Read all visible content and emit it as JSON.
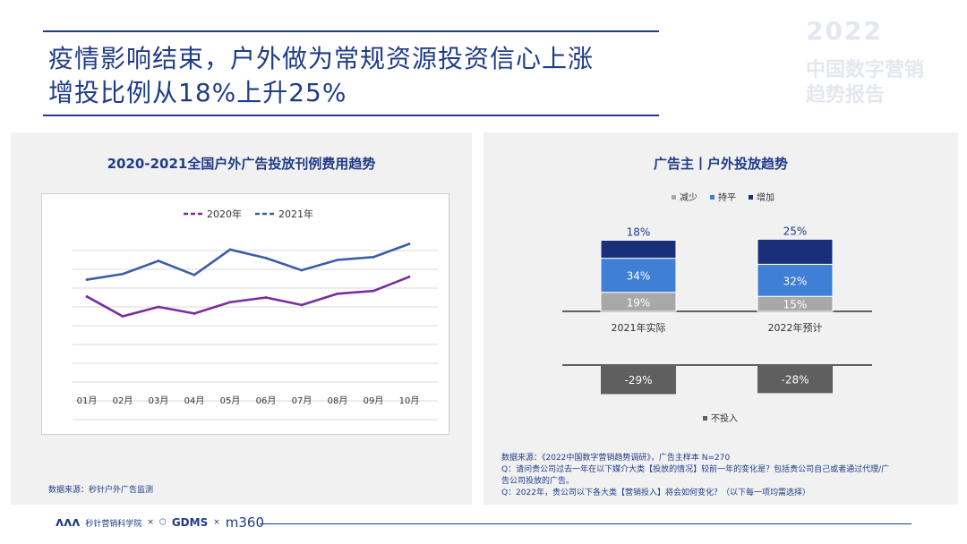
{
  "header": {
    "title_line1": "疫情影响结束，户外做为常规资源投资信心上涨",
    "title_line2": "增投比例从18%上升25%"
  },
  "watermark": {
    "year": "2022",
    "line1": "中国数字营销",
    "line2": "趋势报告"
  },
  "left_panel": {
    "source": "数据来源：秒针户外广告监测"
  },
  "right_panel": {
    "source_line1": "数据来源：《2022中国数字营销趋势调研》，广告主样本 N=270",
    "source_line2": "Q：请问贵公司过去一年在以下媒介大类【投放的情况】较前一年的变化是？包括贵公司自己或者通过代理/广",
    "source_line3": "告公司投放的广告。",
    "source_line4": "Q：2022年，贵公司以下各大类【营销投入】将会如何变化？（以下每一项均需选择）"
  },
  "footer": {
    "logo1_text": "秒针营销科学院",
    "sep1": "×",
    "logo2_text": "GDMS",
    "sep2": "×",
    "logo3_text": "m360"
  },
  "colors": {
    "title_blue": "#1f3c88",
    "series_2020": "#7b2d9e",
    "series_2021": "#3a5ea8",
    "decrease": "#a8a8a8",
    "flat": "#3f7fd6",
    "increase": "#1a2f7a",
    "no_invest": "#5f5f5f"
  },
  "chart_data": [
    {
      "type": "line",
      "title": "2020-2021全国户外广告投放刊例费用趋势",
      "categories": [
        "01月",
        "02月",
        "03月",
        "04月",
        "05月",
        "06月",
        "07月",
        "08月",
        "09月",
        "10月"
      ],
      "series": [
        {
          "name": "2020年",
          "values": [
            5.1,
            3.0,
            4.0,
            3.3,
            4.5,
            5.0,
            4.2,
            5.4,
            5.7,
            7.2
          ]
        },
        {
          "name": "2021年",
          "values": [
            6.9,
            7.5,
            8.9,
            7.4,
            10.1,
            9.2,
            7.9,
            9.0,
            9.3,
            10.7
          ]
        }
      ],
      "ylim": [
        -8,
        12
      ],
      "y_ticks": [
        -8,
        -6,
        -4,
        -2,
        0,
        2,
        4,
        6,
        8,
        10
      ],
      "grid": true,
      "legend_position": "top",
      "xlabel": "",
      "ylabel": ""
    },
    {
      "type": "bar",
      "title": "广告主丨户外投放趋势",
      "categories": [
        "2021年实际",
        "2022年预计"
      ],
      "series": [
        {
          "name": "减少",
          "values": [
            19,
            15
          ],
          "labels": [
            "19%",
            "15%"
          ]
        },
        {
          "name": "持平",
          "values": [
            34,
            32
          ],
          "labels": [
            "34%",
            "32%"
          ]
        },
        {
          "name": "增加",
          "values": [
            18,
            25
          ],
          "labels": [
            "18%",
            "25%"
          ]
        },
        {
          "name": "不投入",
          "values": [
            -29,
            -28
          ],
          "labels": [
            "-29%",
            "-28%"
          ]
        }
      ],
      "stacked": true,
      "legend_top": [
        "减少",
        "持平",
        "增加"
      ],
      "legend_bottom": [
        "不投入"
      ]
    }
  ]
}
